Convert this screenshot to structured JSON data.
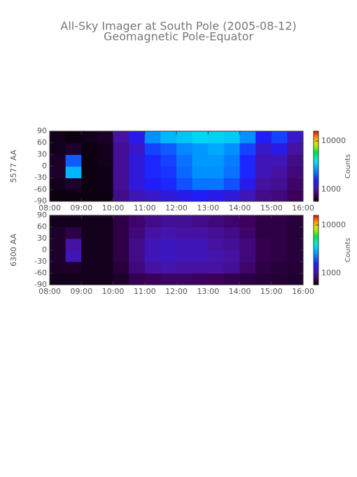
{
  "chart_data": [
    {
      "type": "heatmap",
      "title": "All-Sky Imager at South Pole (2005-08-12)",
      "subtitle": "Geomagnetic Pole-Equator",
      "ylabel": "5577 AA",
      "colorbar_label": "Counts",
      "log_color": true,
      "xlim": [
        8,
        16
      ],
      "ylim": [
        -90,
        90
      ],
      "clim": [
        570,
        16000
      ],
      "xticks": [
        {
          "value": 8,
          "label": "08:00"
        },
        {
          "value": 9,
          "label": "09:00"
        },
        {
          "value": 10,
          "label": "10:00"
        },
        {
          "value": 11,
          "label": "11:00"
        },
        {
          "value": 12,
          "label": "12:00"
        },
        {
          "value": 13,
          "label": "13:00"
        },
        {
          "value": 14,
          "label": "14:00"
        },
        {
          "value": 15,
          "label": "15:00"
        },
        {
          "value": 16,
          "label": "16:00"
        }
      ],
      "yticks": [
        90,
        60,
        30,
        0,
        -30,
        -60,
        -90
      ],
      "cticks": [
        1000,
        10000
      ],
      "x": [
        8.25,
        8.75,
        9.25,
        9.75,
        10.25,
        10.75,
        11.25,
        11.75,
        12.25,
        12.75,
        13.25,
        13.75,
        14.25,
        14.75,
        15.25,
        15.75
      ],
      "y": [
        -75,
        -45,
        -15,
        15,
        45,
        75
      ],
      "z": [
        [
          600,
          600,
          600,
          600,
          900,
          1100,
          1200,
          1300,
          1400,
          1500,
          1400,
          1300,
          1100,
          900,
          850,
          750
        ],
        [
          620,
          650,
          600,
          610,
          950,
          1300,
          1500,
          1600,
          1900,
          2200,
          2200,
          1900,
          1400,
          1000,
          950,
          800
        ],
        [
          650,
          3000,
          600,
          610,
          950,
          1300,
          1600,
          1700,
          2100,
          2500,
          2500,
          2200,
          1600,
          1100,
          1000,
          850
        ],
        [
          640,
          2000,
          600,
          620,
          950,
          1300,
          1600,
          1800,
          2200,
          2600,
          2600,
          2300,
          1600,
          1100,
          1100,
          900
        ],
        [
          620,
          650,
          600,
          620,
          950,
          1200,
          1800,
          2000,
          2400,
          2600,
          2800,
          2500,
          1800,
          1200,
          1400,
          1000
        ],
        [
          620,
          600,
          620,
          640,
          1000,
          1400,
          2500,
          3000,
          3200,
          3500,
          3400,
          3300,
          2500,
          1500,
          1800,
          1200
        ]
      ]
    },
    {
      "type": "heatmap",
      "ylabel": "6300 AA",
      "colorbar_label": "Counts",
      "log_color": true,
      "xlim": [
        8,
        16
      ],
      "ylim": [
        -90,
        90
      ],
      "clim": [
        570,
        16000
      ],
      "xticks": [
        {
          "value": 8,
          "label": "08:00"
        },
        {
          "value": 9,
          "label": "09:00"
        },
        {
          "value": 10,
          "label": "10:00"
        },
        {
          "value": 11,
          "label": "11:00"
        },
        {
          "value": 12,
          "label": "12:00"
        },
        {
          "value": 13,
          "label": "13:00"
        },
        {
          "value": 14,
          "label": "14:00"
        },
        {
          "value": 15,
          "label": "15:00"
        },
        {
          "value": 16,
          "label": "16:00"
        }
      ],
      "yticks": [
        90,
        60,
        30,
        0,
        -30,
        -60,
        -90
      ],
      "cticks": [
        1000,
        10000
      ],
      "x": [
        8.25,
        8.75,
        9.25,
        9.75,
        10.25,
        10.75,
        11.25,
        11.75,
        12.25,
        12.75,
        13.25,
        13.75,
        14.25,
        14.75,
        15.25,
        15.75
      ],
      "y": [
        -75,
        -45,
        -15,
        15,
        45,
        75
      ],
      "z": [
        [
          620,
          620,
          620,
          620,
          650,
          720,
          750,
          780,
          780,
          760,
          750,
          720,
          700,
          680,
          670,
          660
        ],
        [
          640,
          650,
          620,
          620,
          680,
          850,
          1000,
          1050,
          1000,
          1000,
          1000,
          950,
          800,
          700,
          680,
          670
        ],
        [
          650,
          1100,
          620,
          620,
          700,
          900,
          1100,
          1150,
          1100,
          1100,
          1050,
          1000,
          850,
          720,
          700,
          680
        ],
        [
          650,
          1000,
          620,
          620,
          700,
          900,
          1100,
          1150,
          1100,
          1100,
          1000,
          950,
          850,
          720,
          700,
          680
        ],
        [
          650,
          700,
          620,
          620,
          700,
          850,
          1000,
          1050,
          1000,
          1000,
          950,
          900,
          800,
          700,
          700,
          680
        ],
        [
          620,
          620,
          620,
          620,
          700,
          800,
          900,
          950,
          950,
          900,
          850,
          800,
          750,
          700,
          700,
          680
        ]
      ]
    }
  ]
}
